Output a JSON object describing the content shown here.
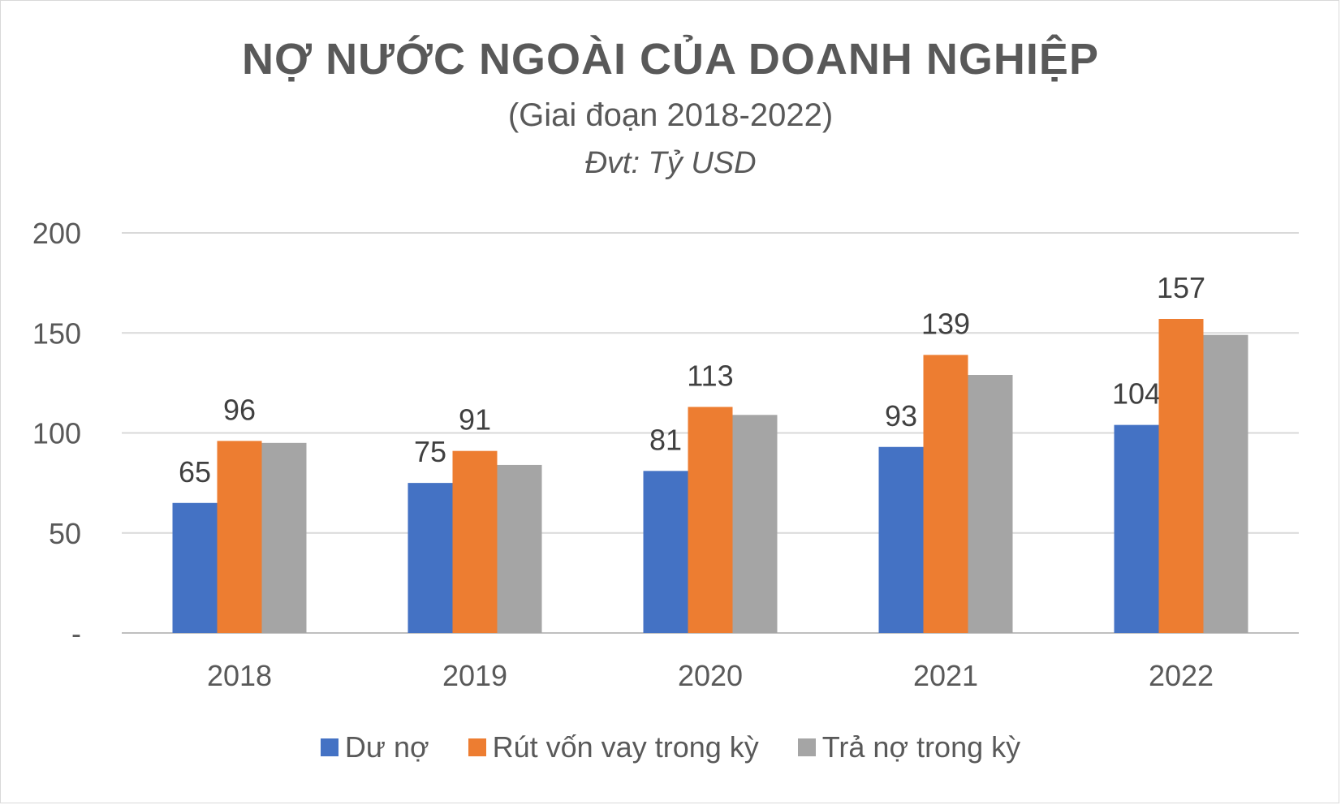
{
  "chart_data": {
    "type": "bar",
    "title": "NỢ NƯỚC NGOÀI CỦA DOANH NGHIỆP",
    "subtitle": "(Giai đoạn 2018-2022)",
    "unit_note": "Đvt: Tỷ USD",
    "categories": [
      "2018",
      "2019",
      "2020",
      "2021",
      "2022"
    ],
    "ylim": [
      0,
      200
    ],
    "yticks": [
      {
        "value": 0,
        "label": "-"
      },
      {
        "value": 50,
        "label": "50"
      },
      {
        "value": 100,
        "label": "100"
      },
      {
        "value": 150,
        "label": "150"
      },
      {
        "value": 200,
        "label": "200"
      }
    ],
    "grid": true,
    "legend_position": "bottom",
    "series": [
      {
        "name": "Dư nợ",
        "color": "#4472C4",
        "values": [
          65,
          75,
          81,
          93,
          104
        ],
        "labeled": true
      },
      {
        "name": "Rút vốn vay trong kỳ",
        "color": "#ED7D31",
        "values": [
          96,
          91,
          113,
          139,
          157
        ],
        "labeled": true
      },
      {
        "name": "Trả nợ trong kỳ",
        "color": "#A5A5A5",
        "values": [
          95,
          84,
          109,
          129,
          149
        ],
        "labeled": false
      }
    ]
  }
}
